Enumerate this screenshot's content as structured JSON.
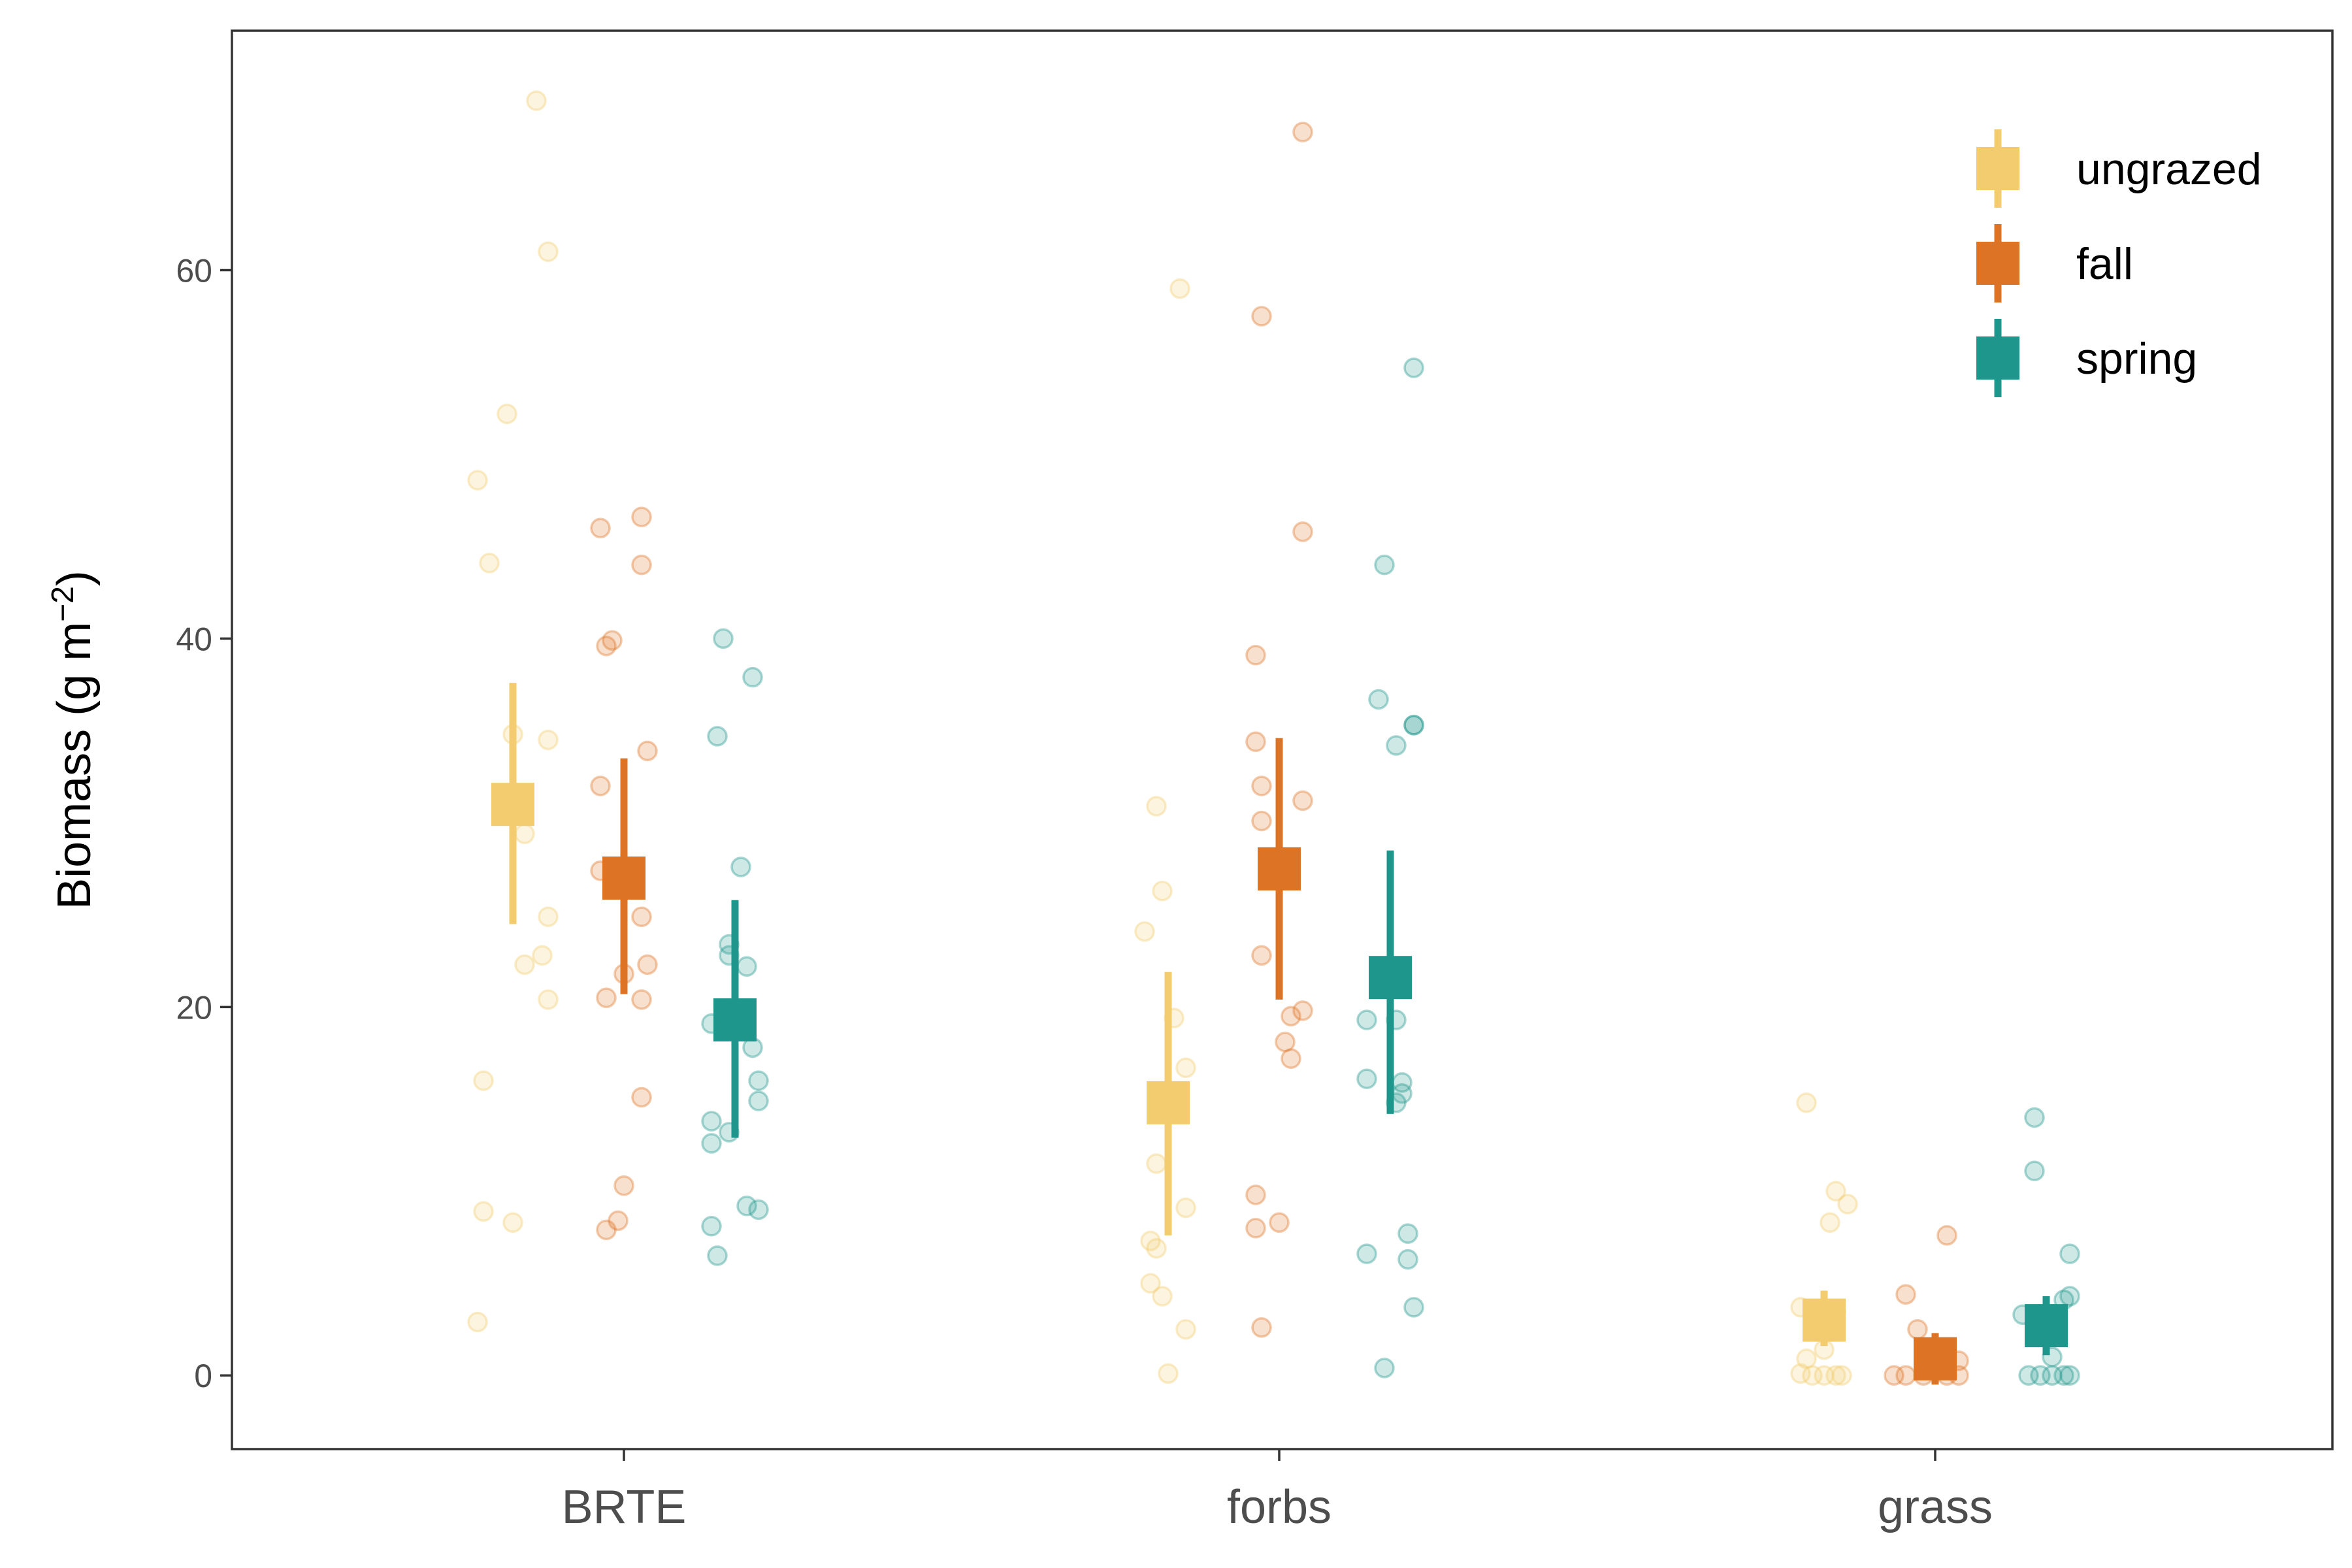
{
  "chart_data": {
    "type": "scatter",
    "title": "",
    "xlabel": "",
    "ylabel": {
      "main": "Biomass (g m",
      "superscript": "−2",
      "close": ")"
    },
    "categories": [
      "BRTE",
      "forbs",
      "grass"
    ],
    "ylim": [
      -4,
      73
    ],
    "yticks": [
      0,
      20,
      40,
      60
    ],
    "grid": false,
    "legend_position": "top-right",
    "series": [
      {
        "name": "ungrazed",
        "color": "#f2cc6f",
        "summary": [
          {
            "category": "BRTE",
            "mean": 31.0,
            "low": 24.5,
            "high": 37.6
          },
          {
            "category": "forbs",
            "mean": 14.8,
            "low": 7.6,
            "high": 21.9
          },
          {
            "category": "grass",
            "mean": 3.0,
            "low": 1.6,
            "high": 4.6
          }
        ],
        "points": [
          {
            "category": "BRTE",
            "offset": 0.04,
            "value": 69.2
          },
          {
            "category": "BRTE",
            "offset": 0.06,
            "value": 61.0
          },
          {
            "category": "BRTE",
            "offset": -0.01,
            "value": 52.2
          },
          {
            "category": "BRTE",
            "offset": -0.06,
            "value": 48.6
          },
          {
            "category": "BRTE",
            "offset": -0.04,
            "value": 44.1
          },
          {
            "category": "BRTE",
            "offset": 0.0,
            "value": 34.8
          },
          {
            "category": "BRTE",
            "offset": 0.06,
            "value": 34.5
          },
          {
            "category": "BRTE",
            "offset": 0.02,
            "value": 29.4
          },
          {
            "category": "BRTE",
            "offset": 0.06,
            "value": 24.9
          },
          {
            "category": "BRTE",
            "offset": 0.05,
            "value": 22.8
          },
          {
            "category": "BRTE",
            "offset": 0.02,
            "value": 22.3
          },
          {
            "category": "BRTE",
            "offset": 0.06,
            "value": 20.4
          },
          {
            "category": "BRTE",
            "offset": -0.05,
            "value": 16.0
          },
          {
            "category": "BRTE",
            "offset": -0.05,
            "value": 8.9
          },
          {
            "category": "BRTE",
            "offset": 0.0,
            "value": 8.3
          },
          {
            "category": "BRTE",
            "offset": -0.06,
            "value": 2.9
          },
          {
            "category": "forbs",
            "offset": 0.02,
            "value": 59.0
          },
          {
            "category": "forbs",
            "offset": -0.02,
            "value": 30.9
          },
          {
            "category": "forbs",
            "offset": -0.01,
            "value": 26.3
          },
          {
            "category": "forbs",
            "offset": -0.04,
            "value": 24.1
          },
          {
            "category": "forbs",
            "offset": 0.01,
            "value": 19.4
          },
          {
            "category": "forbs",
            "offset": 0.03,
            "value": 16.7
          },
          {
            "category": "forbs",
            "offset": -0.02,
            "value": 11.5
          },
          {
            "category": "forbs",
            "offset": 0.03,
            "value": 9.1
          },
          {
            "category": "forbs",
            "offset": -0.03,
            "value": 7.3
          },
          {
            "category": "forbs",
            "offset": -0.02,
            "value": 6.9
          },
          {
            "category": "forbs",
            "offset": -0.03,
            "value": 5.0
          },
          {
            "category": "forbs",
            "offset": -0.01,
            "value": 4.3
          },
          {
            "category": "forbs",
            "offset": 0.03,
            "value": 2.5
          },
          {
            "category": "forbs",
            "offset": 0.0,
            "value": 0.1
          },
          {
            "category": "grass",
            "offset": -0.03,
            "value": 14.8
          },
          {
            "category": "grass",
            "offset": 0.02,
            "value": 10.0
          },
          {
            "category": "grass",
            "offset": 0.04,
            "value": 9.3
          },
          {
            "category": "grass",
            "offset": 0.01,
            "value": 8.3
          },
          {
            "category": "grass",
            "offset": -0.04,
            "value": 3.7
          },
          {
            "category": "grass",
            "offset": 0.02,
            "value": 3.5
          },
          {
            "category": "grass",
            "offset": 0.0,
            "value": 1.4
          },
          {
            "category": "grass",
            "offset": -0.03,
            "value": 0.9
          },
          {
            "category": "grass",
            "offset": -0.04,
            "value": 0.1
          },
          {
            "category": "grass",
            "offset": -0.02,
            "value": 0.0
          },
          {
            "category": "grass",
            "offset": 0.0,
            "value": 0.0
          },
          {
            "category": "grass",
            "offset": 0.02,
            "value": 0.0
          },
          {
            "category": "grass",
            "offset": 0.03,
            "value": 0.0
          }
        ]
      },
      {
        "name": "fall",
        "color": "#dd7425",
        "summary": [
          {
            "category": "BRTE",
            "mean": 27.0,
            "low": 20.7,
            "high": 33.5
          },
          {
            "category": "forbs",
            "mean": 27.5,
            "low": 20.4,
            "high": 34.6
          },
          {
            "category": "grass",
            "mean": 0.9,
            "low": -0.5,
            "high": 2.3
          }
        ],
        "points": [
          {
            "category": "BRTE",
            "offset": 0.03,
            "value": 46.6
          },
          {
            "category": "BRTE",
            "offset": -0.04,
            "value": 46.0
          },
          {
            "category": "BRTE",
            "offset": 0.03,
            "value": 44.0
          },
          {
            "category": "BRTE",
            "offset": -0.02,
            "value": 39.9
          },
          {
            "category": "BRTE",
            "offset": -0.03,
            "value": 39.6
          },
          {
            "category": "BRTE",
            "offset": 0.04,
            "value": 33.9
          },
          {
            "category": "BRTE",
            "offset": -0.04,
            "value": 32.0
          },
          {
            "category": "BRTE",
            "offset": -0.04,
            "value": 27.4
          },
          {
            "category": "BRTE",
            "offset": 0.03,
            "value": 24.9
          },
          {
            "category": "BRTE",
            "offset": 0.04,
            "value": 22.3
          },
          {
            "category": "BRTE",
            "offset": 0.0,
            "value": 21.8
          },
          {
            "category": "BRTE",
            "offset": -0.03,
            "value": 20.5
          },
          {
            "category": "BRTE",
            "offset": 0.03,
            "value": 20.4
          },
          {
            "category": "BRTE",
            "offset": 0.03,
            "value": 15.1
          },
          {
            "category": "BRTE",
            "offset": 0.0,
            "value": 10.3
          },
          {
            "category": "BRTE",
            "offset": -0.01,
            "value": 8.4
          },
          {
            "category": "BRTE",
            "offset": -0.03,
            "value": 7.9
          },
          {
            "category": "forbs",
            "offset": 0.04,
            "value": 67.5
          },
          {
            "category": "forbs",
            "offset": -0.03,
            "value": 57.5
          },
          {
            "category": "forbs",
            "offset": 0.04,
            "value": 45.8
          },
          {
            "category": "forbs",
            "offset": -0.04,
            "value": 39.1
          },
          {
            "category": "forbs",
            "offset": -0.04,
            "value": 34.4
          },
          {
            "category": "forbs",
            "offset": -0.03,
            "value": 32.0
          },
          {
            "category": "forbs",
            "offset": 0.04,
            "value": 31.2
          },
          {
            "category": "forbs",
            "offset": -0.03,
            "value": 30.1
          },
          {
            "category": "forbs",
            "offset": -0.03,
            "value": 22.8
          },
          {
            "category": "forbs",
            "offset": 0.04,
            "value": 19.8
          },
          {
            "category": "forbs",
            "offset": 0.02,
            "value": 19.5
          },
          {
            "category": "forbs",
            "offset": 0.01,
            "value": 18.1
          },
          {
            "category": "forbs",
            "offset": 0.02,
            "value": 17.2
          },
          {
            "category": "forbs",
            "offset": -0.04,
            "value": 9.8
          },
          {
            "category": "forbs",
            "offset": 0.0,
            "value": 8.3
          },
          {
            "category": "forbs",
            "offset": -0.04,
            "value": 8.0
          },
          {
            "category": "forbs",
            "offset": -0.03,
            "value": 2.6
          },
          {
            "category": "grass",
            "offset": 0.02,
            "value": 7.6
          },
          {
            "category": "grass",
            "offset": -0.05,
            "value": 4.4
          },
          {
            "category": "grass",
            "offset": -0.03,
            "value": 2.5
          },
          {
            "category": "grass",
            "offset": 0.04,
            "value": 0.8
          },
          {
            "category": "grass",
            "offset": -0.01,
            "value": 0.4
          },
          {
            "category": "grass",
            "offset": -0.07,
            "value": 0.0
          },
          {
            "category": "grass",
            "offset": -0.05,
            "value": 0.0
          },
          {
            "category": "grass",
            "offset": -0.02,
            "value": 0.0
          },
          {
            "category": "grass",
            "offset": 0.02,
            "value": 0.0
          },
          {
            "category": "grass",
            "offset": 0.04,
            "value": 0.0
          }
        ]
      },
      {
        "name": "spring",
        "color": "#1f968b",
        "summary": [
          {
            "category": "BRTE",
            "mean": 19.3,
            "low": 12.9,
            "high": 25.8
          },
          {
            "category": "forbs",
            "mean": 21.6,
            "low": 14.2,
            "high": 28.5
          },
          {
            "category": "grass",
            "mean": 2.7,
            "low": 1.1,
            "high": 4.3
          }
        ],
        "points": [
          {
            "category": "BRTE",
            "offset": -0.02,
            "value": 40.0
          },
          {
            "category": "BRTE",
            "offset": 0.03,
            "value": 37.9
          },
          {
            "category": "BRTE",
            "offset": -0.03,
            "value": 34.7
          },
          {
            "category": "BRTE",
            "offset": 0.01,
            "value": 27.6
          },
          {
            "category": "BRTE",
            "offset": -0.01,
            "value": 23.4
          },
          {
            "category": "BRTE",
            "offset": -0.01,
            "value": 22.8
          },
          {
            "category": "BRTE",
            "offset": 0.02,
            "value": 22.2
          },
          {
            "category": "BRTE",
            "offset": -0.04,
            "value": 19.1
          },
          {
            "category": "BRTE",
            "offset": 0.03,
            "value": 17.8
          },
          {
            "category": "BRTE",
            "offset": 0.04,
            "value": 16.0
          },
          {
            "category": "BRTE",
            "offset": 0.04,
            "value": 14.9
          },
          {
            "category": "BRTE",
            "offset": -0.04,
            "value": 13.8
          },
          {
            "category": "BRTE",
            "offset": -0.01,
            "value": 13.2
          },
          {
            "category": "BRTE",
            "offset": -0.04,
            "value": 12.6
          },
          {
            "category": "BRTE",
            "offset": 0.02,
            "value": 9.2
          },
          {
            "category": "BRTE",
            "offset": 0.04,
            "value": 9.0
          },
          {
            "category": "BRTE",
            "offset": -0.04,
            "value": 8.1
          },
          {
            "category": "BRTE",
            "offset": -0.03,
            "value": 6.5
          },
          {
            "category": "forbs",
            "offset": 0.04,
            "value": 54.7
          },
          {
            "category": "forbs",
            "offset": -0.01,
            "value": 44.0
          },
          {
            "category": "forbs",
            "offset": -0.02,
            "value": 36.7
          },
          {
            "category": "forbs",
            "offset": 0.04,
            "value": 35.3
          },
          {
            "category": "forbs",
            "offset": 0.04,
            "value": 35.3
          },
          {
            "category": "forbs",
            "offset": 0.01,
            "value": 34.2
          },
          {
            "category": "forbs",
            "offset": -0.04,
            "value": 19.3
          },
          {
            "category": "forbs",
            "offset": 0.01,
            "value": 19.3
          },
          {
            "category": "forbs",
            "offset": -0.04,
            "value": 16.1
          },
          {
            "category": "forbs",
            "offset": 0.02,
            "value": 15.9
          },
          {
            "category": "forbs",
            "offset": 0.02,
            "value": 15.3
          },
          {
            "category": "forbs",
            "offset": 0.01,
            "value": 14.8
          },
          {
            "category": "forbs",
            "offset": 0.03,
            "value": 7.7
          },
          {
            "category": "forbs",
            "offset": -0.04,
            "value": 6.6
          },
          {
            "category": "forbs",
            "offset": 0.03,
            "value": 6.3
          },
          {
            "category": "forbs",
            "offset": 0.04,
            "value": 3.7
          },
          {
            "category": "forbs",
            "offset": -0.01,
            "value": 0.4
          },
          {
            "category": "grass",
            "offset": -0.02,
            "value": 14.0
          },
          {
            "category": "grass",
            "offset": -0.02,
            "value": 11.1
          },
          {
            "category": "grass",
            "offset": 0.04,
            "value": 6.6
          },
          {
            "category": "grass",
            "offset": 0.04,
            "value": 4.3
          },
          {
            "category": "grass",
            "offset": 0.03,
            "value": 4.1
          },
          {
            "category": "grass",
            "offset": -0.04,
            "value": 3.3
          },
          {
            "category": "grass",
            "offset": 0.01,
            "value": 1.0
          },
          {
            "category": "grass",
            "offset": -0.03,
            "value": 0.0
          },
          {
            "category": "grass",
            "offset": -0.01,
            "value": 0.0
          },
          {
            "category": "grass",
            "offset": 0.01,
            "value": 0.0
          },
          {
            "category": "grass",
            "offset": 0.03,
            "value": 0.0
          },
          {
            "category": "grass",
            "offset": 0.04,
            "value": 0.0
          }
        ]
      }
    ]
  }
}
